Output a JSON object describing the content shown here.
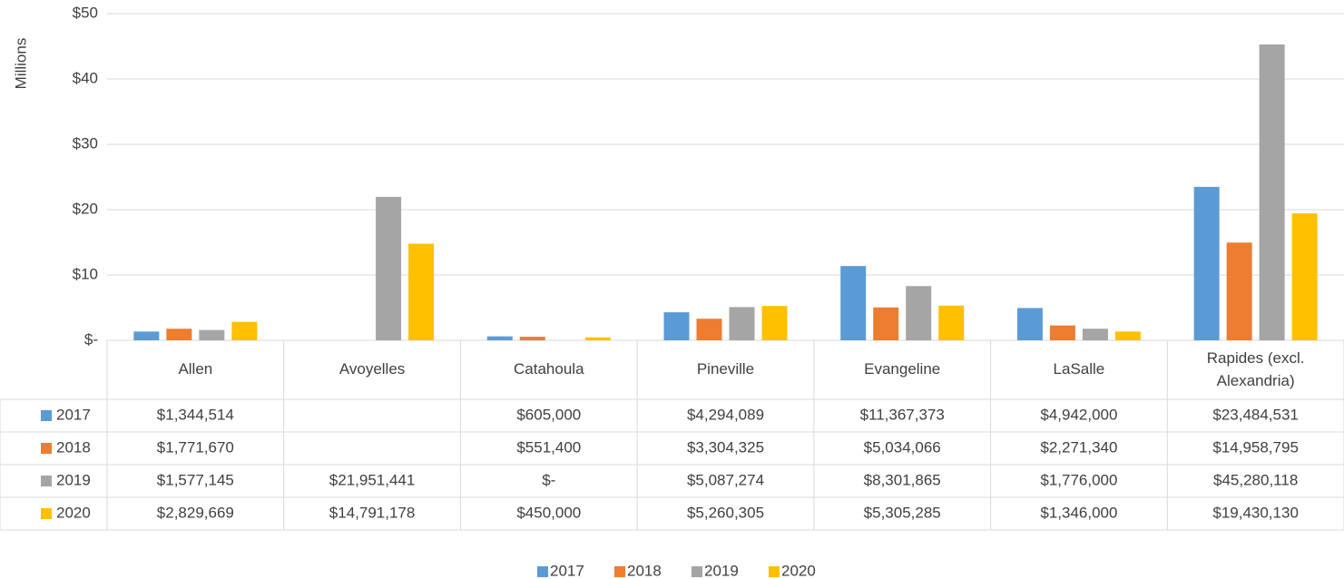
{
  "chart_data": {
    "type": "bar",
    "y_label": "Millions",
    "categories": [
      "Allen",
      "Avoyelles",
      "Catahoula",
      "Pineville",
      "Evangeline",
      "LaSalle",
      "Rapides (excl. Alexandria)"
    ],
    "series": [
      {
        "name": "2017",
        "color": "#5b9bd5",
        "values": [
          1344514,
          null,
          605000,
          4294089,
          11367373,
          4942000,
          23484531
        ],
        "value_labels": [
          "$1,344,514",
          null,
          "$605,000",
          "$4,294,089",
          "$11,367,373",
          "$4,942,000",
          "$23,484,531"
        ]
      },
      {
        "name": "2018",
        "color": "#ed7d31",
        "values": [
          1771670,
          null,
          551400,
          3304325,
          5034066,
          2271340,
          14958795
        ],
        "value_labels": [
          "$1,771,670",
          null,
          "$551,400",
          "$3,304,325",
          "$5,034,066",
          "$2,271,340",
          "$14,958,795"
        ]
      },
      {
        "name": "2019",
        "color": "#a5a5a5",
        "values": [
          1577145,
          21951441,
          0,
          5087274,
          8301865,
          1776000,
          45280118
        ],
        "value_labels": [
          "$1,577,145",
          "$21,951,441",
          "$-",
          "$5,087,274",
          "$8,301,865",
          "$1,776,000",
          "$45,280,118"
        ]
      },
      {
        "name": "2020",
        "color": "#ffc000",
        "values": [
          2829669,
          14791178,
          450000,
          5260305,
          5305285,
          1346000,
          19430130
        ],
        "value_labels": [
          "$2,829,669",
          "$14,791,178",
          "$450,000",
          "$5,260,305",
          "$5,305,285",
          "$1,346,000",
          "$19,430,130"
        ]
      }
    ],
    "ylim": [
      0,
      50000000
    ],
    "yticks": [
      {
        "value": 0,
        "label": "$-"
      },
      {
        "value": 10000000,
        "label": "$10"
      },
      {
        "value": 20000000,
        "label": "$20"
      },
      {
        "value": 30000000,
        "label": "$30"
      },
      {
        "value": 40000000,
        "label": "$40"
      },
      {
        "value": 50000000,
        "label": "$50"
      }
    ],
    "grid": true,
    "legend": "bottom"
  }
}
